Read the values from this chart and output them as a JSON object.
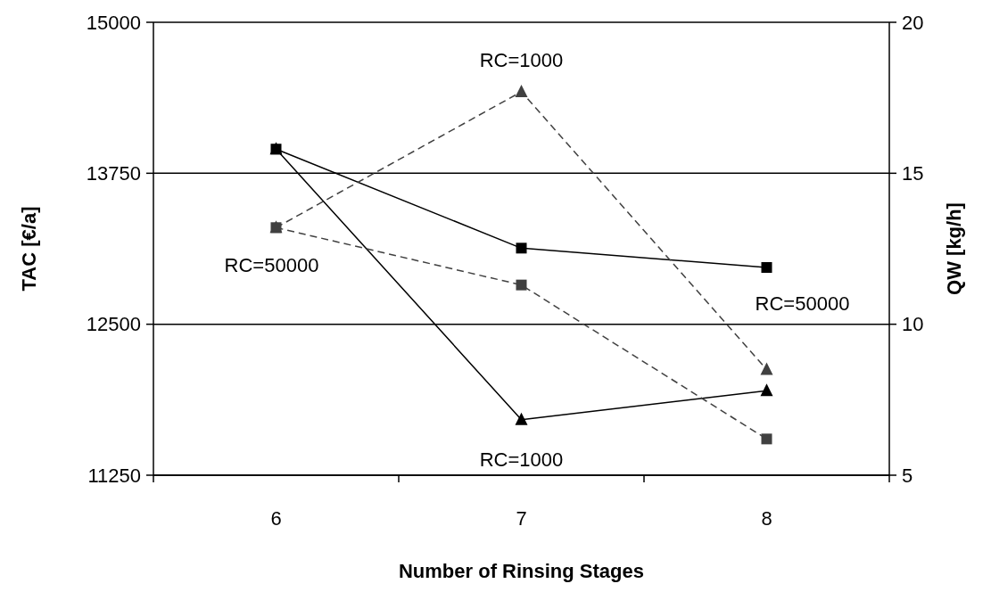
{
  "chart_data": {
    "type": "line",
    "xlabel": "Number of Rinsing Stages",
    "ylabel": "TAC [€/a]",
    "y2label": "QW [kg/h]",
    "categories": [
      "6",
      "7",
      "8"
    ],
    "series": [
      {
        "name": "RC=50000",
        "color": "#000000",
        "values": [
          13950,
          13130,
          12970
        ],
        "marker": "square",
        "line_style": "solid"
      },
      {
        "name": "RC=1000",
        "color": "#000000",
        "values": [
          13950,
          11710,
          11950
        ],
        "marker": "triangle",
        "line_style": "solid"
      },
      {
        "name": "RC=50000",
        "color": "#404040",
        "values": [
          13.2,
          11.3,
          6.2
        ],
        "marker": "square",
        "line_style": "dashed",
        "axis": "y2"
      },
      {
        "name": "RC=1000",
        "color": "#404040",
        "values": [
          13.2,
          17.7,
          8.5
        ],
        "marker": "triangle",
        "line_style": "dashed",
        "axis": "y2"
      }
    ],
    "ylim": [
      11250,
      15000
    ],
    "yticks": [
      11250,
      12500,
      13750,
      15000
    ],
    "y2lim": [
      5,
      20
    ],
    "y2ticks": [
      5,
      10,
      15,
      20
    ],
    "grid": "y"
  }
}
